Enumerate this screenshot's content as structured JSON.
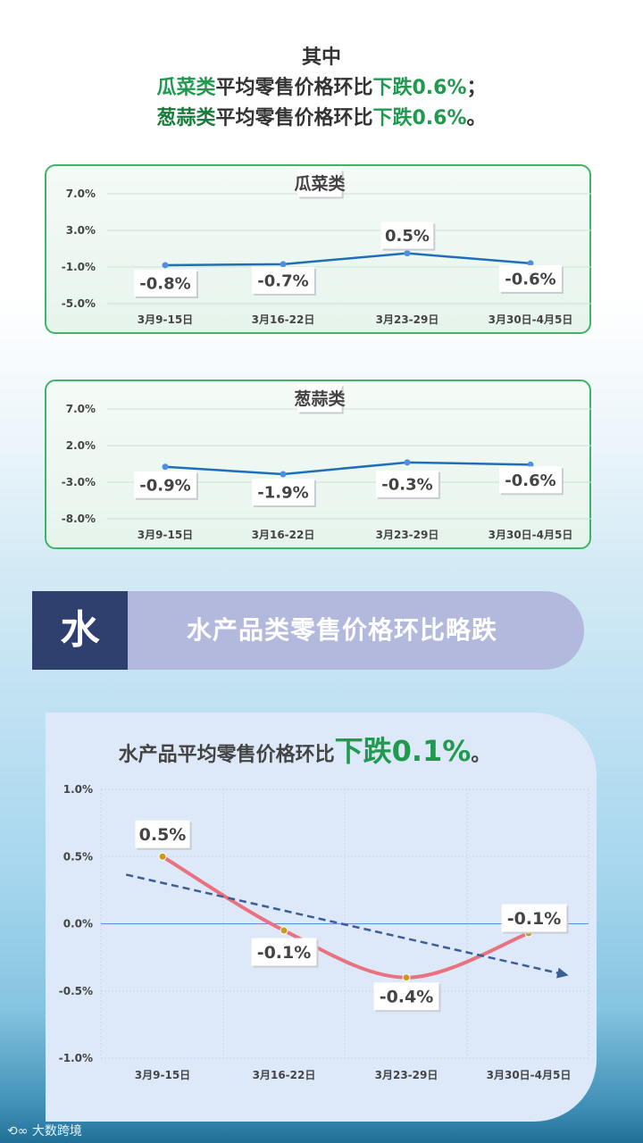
{
  "intro": {
    "heading": "其中",
    "line1": {
      "category": "瓜菜类",
      "middle": "平均零售价格环比",
      "change": "下跌0.6%",
      "end": "；"
    },
    "line2": {
      "category": "葱蒜类",
      "middle": "平均零售价格环比",
      "change": "下跌0.6%",
      "end": "。"
    }
  },
  "banner": {
    "icon_char": "水",
    "title": "水产品类零售价格环比略跌"
  },
  "panel": {
    "prefix": "水产品平均零售价格环比",
    "change": "下跌0.1%",
    "end": "。"
  },
  "footer": {
    "logo_text": "大数跨境"
  },
  "colors": {
    "accent_green": "#1f9a4f",
    "line_blue": "#1f6fb8",
    "line_pink": "#e8727f",
    "trend_dashed": "#3b5f95",
    "banner_dark": "#2f3f6e",
    "banner_light": "#b3b9dd"
  },
  "chart_data": [
    {
      "type": "line",
      "title": "瓜菜类",
      "categories": [
        "3月9-15日",
        "3月16-22日",
        "3月23-29日",
        "3月30日-4月5日"
      ],
      "values": [
        -0.8,
        -0.7,
        0.5,
        -0.6
      ],
      "data_labels": [
        "-0.8%",
        "-0.7%",
        "0.5%",
        "-0.6%"
      ],
      "yticks": [
        "7.0%",
        "3.0%",
        "-1.0%",
        "-5.0%"
      ],
      "ylim": [
        -5,
        7
      ],
      "grid": true
    },
    {
      "type": "line",
      "title": "葱蒜类",
      "categories": [
        "3月9-15日",
        "3月16-22日",
        "3月23-29日",
        "3月30日-4月5日"
      ],
      "values": [
        -0.9,
        -1.9,
        -0.3,
        -0.6
      ],
      "data_labels": [
        "-0.9%",
        "-1.9%",
        "-0.3%",
        "-0.6%"
      ],
      "yticks": [
        "7.0%",
        "2.0%",
        "-3.0%",
        "-8.0%"
      ],
      "ylim": [
        -8,
        7
      ],
      "grid": true
    },
    {
      "type": "line",
      "title": "",
      "categories": [
        "3月9-15日",
        "3月16-22日",
        "3月23-29日",
        "3月30日-4月5日"
      ],
      "values": [
        0.5,
        -0.05,
        -0.4,
        -0.07
      ],
      "data_labels": [
        "0.5%",
        "-0.1%",
        "-0.4%",
        "-0.1%"
      ],
      "yticks": [
        "1.0%",
        "0.5%",
        "0.0%",
        "-0.5%",
        "-1.0%"
      ],
      "ylim": [
        -1,
        1
      ],
      "trendline": true,
      "grid": true
    }
  ]
}
